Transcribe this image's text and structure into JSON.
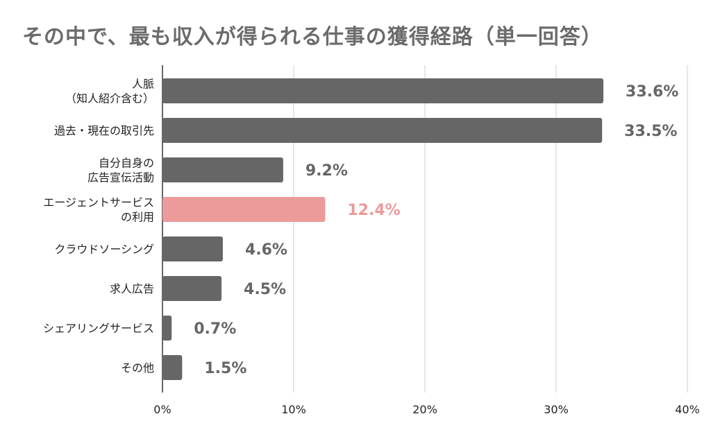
{
  "chart_data": {
    "type": "bar",
    "orientation": "horizontal",
    "title": "その中で、最も収入が得られる仕事の獲得経路（単一回答）",
    "xlabel": "",
    "ylabel": "",
    "categories": [
      [
        "人脈",
        "（知人紹介含む）"
      ],
      [
        "過去・現在の取引先"
      ],
      [
        "自分自身の",
        "広告宣伝活動"
      ],
      [
        "エージェントサービス",
        "の利用"
      ],
      [
        "クラウドソーシング"
      ],
      [
        "求人広告"
      ],
      [
        "シェアリングサービス"
      ],
      [
        "その他"
      ]
    ],
    "values": [
      33.6,
      33.5,
      9.2,
      12.4,
      4.6,
      4.5,
      0.7,
      1.5
    ],
    "value_labels": [
      "33.6%",
      "33.5%",
      "9.2%",
      "12.4%",
      "4.6%",
      "4.5%",
      "0.7%",
      "1.5%"
    ],
    "highlight_index": 3,
    "xlim": [
      0,
      40
    ],
    "x_ticks": [
      0,
      10,
      20,
      30,
      40
    ],
    "x_tick_labels": [
      "0%",
      "10%",
      "20%",
      "30%",
      "40%"
    ],
    "grid": "vertical",
    "legend": "none",
    "colors": {
      "bar": "#666666",
      "highlight": "#ec9a9a",
      "label": "#666666",
      "highlight_label": "#ec9a9a",
      "grid": "#cccccc",
      "axis": "#333333",
      "title": "#6b6b6b"
    }
  }
}
